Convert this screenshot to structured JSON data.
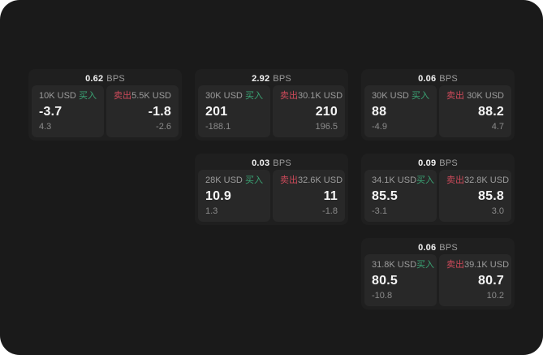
{
  "labels": {
    "bps_unit": "BPS",
    "buy": "买入",
    "sell": "卖出"
  },
  "colors": {
    "background": "#1a1a1a",
    "card": "#1f1f1f",
    "panel": "#282828",
    "buy_green": "#3aa374",
    "sell_red": "#cd4a5a",
    "text_primary": "#f5f5f5",
    "text_muted": "#9c9c9c"
  },
  "cards": [
    {
      "bps": "0.62",
      "col": 1,
      "row": 1,
      "buy": {
        "size": "10K USD",
        "value": "-3.7",
        "sub": "4.3"
      },
      "sell": {
        "size": "5.5K USD",
        "value": "-1.8",
        "sub": "-2.6"
      }
    },
    {
      "bps": "2.92",
      "col": 2,
      "row": 1,
      "buy": {
        "size": "30K USD",
        "value": "201",
        "sub": "-188.1"
      },
      "sell": {
        "size": "30.1K USD",
        "value": "210",
        "sub": "196.5"
      }
    },
    {
      "bps": "0.06",
      "col": 3,
      "row": 1,
      "buy": {
        "size": "30K USD",
        "value": "88",
        "sub": "-4.9"
      },
      "sell": {
        "size": "30K USD",
        "value": "88.2",
        "sub": "4.7"
      }
    },
    {
      "bps": "0.03",
      "col": 2,
      "row": 2,
      "buy": {
        "size": "28K USD",
        "value": "10.9",
        "sub": "1.3"
      },
      "sell": {
        "size": "32.6K USD",
        "value": "11",
        "sub": "-1.8"
      }
    },
    {
      "bps": "0.09",
      "col": 3,
      "row": 2,
      "buy": {
        "size": "34.1K USD",
        "value": "85.5",
        "sub": "-3.1"
      },
      "sell": {
        "size": "32.8K USD",
        "value": "85.8",
        "sub": "3.0"
      }
    },
    {
      "bps": "0.06",
      "col": 3,
      "row": 3,
      "buy": {
        "size": "31.8K USD",
        "value": "80.5",
        "sub": "-10.8"
      },
      "sell": {
        "size": "39.1K USD",
        "value": "80.7",
        "sub": "10.2"
      }
    }
  ]
}
